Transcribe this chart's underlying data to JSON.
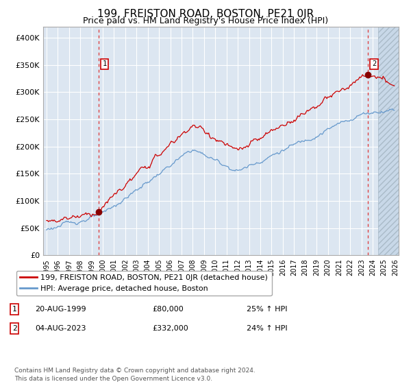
{
  "title": "199, FREISTON ROAD, BOSTON, PE21 0JR",
  "subtitle": "Price paid vs. HM Land Registry's House Price Index (HPI)",
  "title_fontsize": 11,
  "subtitle_fontsize": 9,
  "plot_bg_color": "#dce6f1",
  "x_start_year": 1995,
  "x_end_year": 2026,
  "ylim": [
    0,
    420000
  ],
  "yticks": [
    0,
    50000,
    100000,
    150000,
    200000,
    250000,
    300000,
    350000,
    400000
  ],
  "ytick_labels": [
    "£0",
    "£50K",
    "£100K",
    "£150K",
    "£200K",
    "£250K",
    "£300K",
    "£350K",
    "£400K"
  ],
  "marker1_x": 1999.62,
  "marker1_value": 80000,
  "marker2_x": 2023.58,
  "marker2_value": 332000,
  "marker1_year": "20-AUG-1999",
  "marker1_price": "£80,000",
  "marker1_hpi": "25% ↑ HPI",
  "marker2_year": "04-AUG-2023",
  "marker2_price": "£332,000",
  "marker2_hpi": "24% ↑ HPI",
  "line1_color": "#cc0000",
  "line2_color": "#6699cc",
  "marker_color": "#880000",
  "vline_color": "#dd4444",
  "legend1_label": "199, FREISTON ROAD, BOSTON, PE21 0JR (detached house)",
  "legend2_label": "HPI: Average price, detached house, Boston",
  "footer": "Contains HM Land Registry data © Crown copyright and database right 2024.\nThis data is licensed under the Open Government Licence v3.0."
}
